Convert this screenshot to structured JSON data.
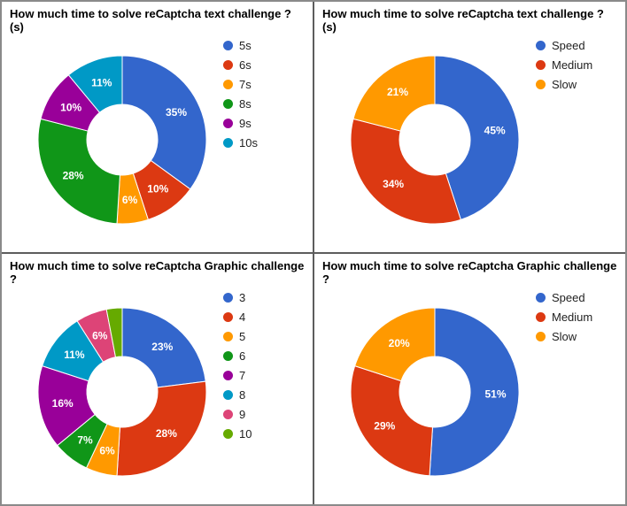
{
  "style": {
    "background": "#ffffff",
    "divider_color": "#5d5d5d",
    "title_color": "#000000",
    "legend_text_color": "#222222",
    "slice_label_color": "#ffffff",
    "label_min_pct": 5
  },
  "chart_data": [
    {
      "type": "pie",
      "donut": true,
      "title": "How much time to solve reCaptcha text challenge ? (s)",
      "legend_position": "right",
      "labels": [
        "5s",
        "6s",
        "7s",
        "8s",
        "9s",
        "10s"
      ],
      "values": [
        35,
        10,
        6,
        28,
        10,
        11
      ],
      "unit": "%",
      "colors": [
        "#3366CC",
        "#DC3912",
        "#FF9900",
        "#109618",
        "#990099",
        "#0099C6"
      ]
    },
    {
      "type": "pie",
      "donut": true,
      "title": "How much time to solve reCaptcha text challenge ? (s)",
      "legend_position": "right",
      "labels": [
        "Speed",
        "Medium",
        "Slow"
      ],
      "values": [
        45,
        34,
        21
      ],
      "unit": "%",
      "colors": [
        "#3366CC",
        "#DC3912",
        "#FF9900"
      ]
    },
    {
      "type": "pie",
      "donut": true,
      "title": "How much time to solve reCaptcha Graphic challenge ?",
      "legend_position": "right",
      "labels": [
        "3",
        "4",
        "5",
        "6",
        "7",
        "8",
        "9",
        "10"
      ],
      "values": [
        23,
        28,
        6,
        7,
        16,
        11,
        6,
        3
      ],
      "unit": "%",
      "colors": [
        "#3366CC",
        "#DC3912",
        "#FF9900",
        "#109618",
        "#990099",
        "#0099C6",
        "#DD4477",
        "#66AA00"
      ]
    },
    {
      "type": "pie",
      "donut": true,
      "title": "How much time to solve reCaptcha Graphic challenge ?",
      "legend_position": "right",
      "labels": [
        "Speed",
        "Medium",
        "Slow"
      ],
      "values": [
        51,
        29,
        20
      ],
      "unit": "%",
      "colors": [
        "#3366CC",
        "#DC3912",
        "#FF9900"
      ]
    }
  ]
}
